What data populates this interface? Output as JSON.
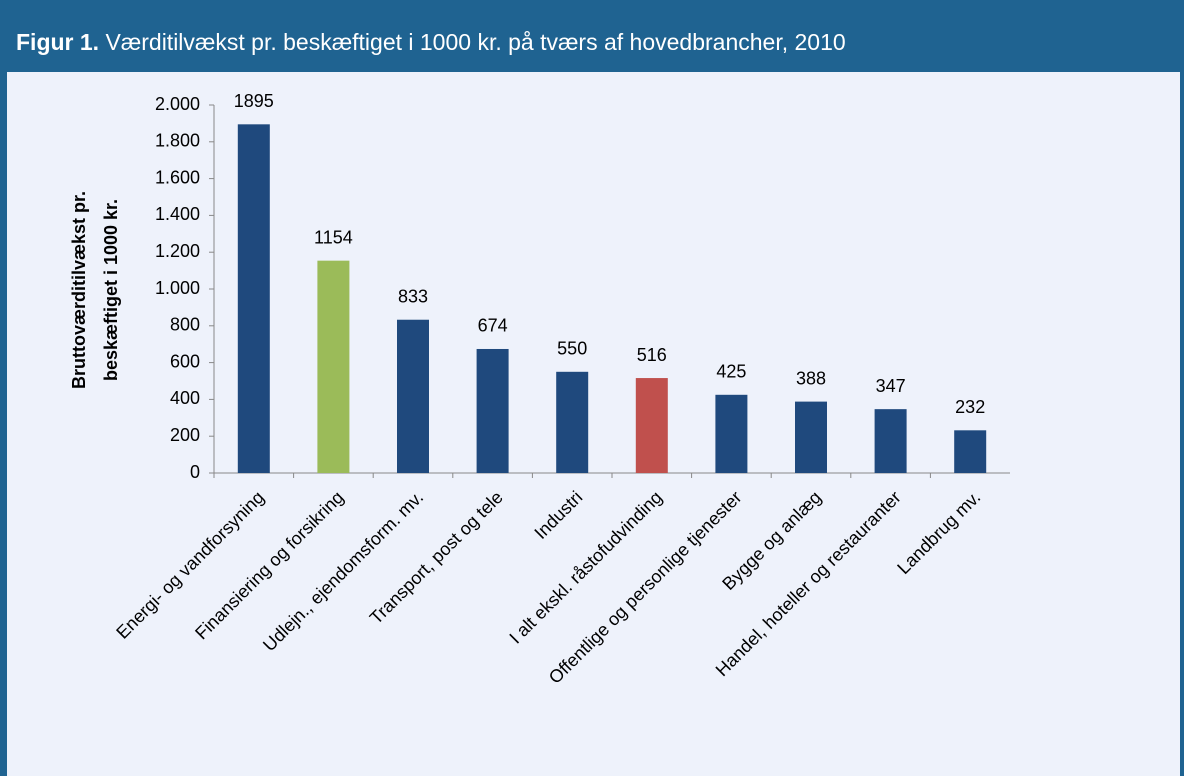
{
  "chart_data": {
    "type": "bar",
    "figure_label": "Figur 1.",
    "title": "Værditilvækst pr. beskæftiget i 1000 kr. på tværs af hovedbrancher, 2010",
    "ylabel": [
      "Bruttoværditilvækst pr.",
      "beskæftiget i 1000 kr."
    ],
    "categories": [
      "Energi- og vandforsyning",
      "Finansiering og forsikring",
      "Udlejn., ejendomsform. mv.",
      "Transport, post og tele",
      "Industri",
      "I alt ekskl. råstofudvinding",
      "Offentlige og personlige tjenester",
      "Bygge og anlæg",
      "Handel, hoteller og restauranter",
      "Landbrug mv."
    ],
    "values": [
      1895,
      1154,
      833,
      674,
      550,
      516,
      425,
      388,
      347,
      232
    ],
    "colors": [
      "#1f497d",
      "#9bbb59",
      "#1f497d",
      "#1f497d",
      "#1f497d",
      "#c0504d",
      "#1f497d",
      "#1f497d",
      "#1f497d",
      "#1f497d"
    ],
    "ylim": [
      0,
      2000
    ],
    "yticks": [
      0,
      200,
      400,
      600,
      800,
      {
        "value": 1000,
        "label": "1.000"
      },
      {
        "value": 1200,
        "label": "1.200"
      },
      {
        "value": 1400,
        "label": "1.400"
      },
      {
        "value": 1600,
        "label": "1.600"
      },
      {
        "value": 1800,
        "label": "1.800"
      },
      {
        "value": 2000,
        "label": "2.000"
      }
    ],
    "grid": false
  }
}
